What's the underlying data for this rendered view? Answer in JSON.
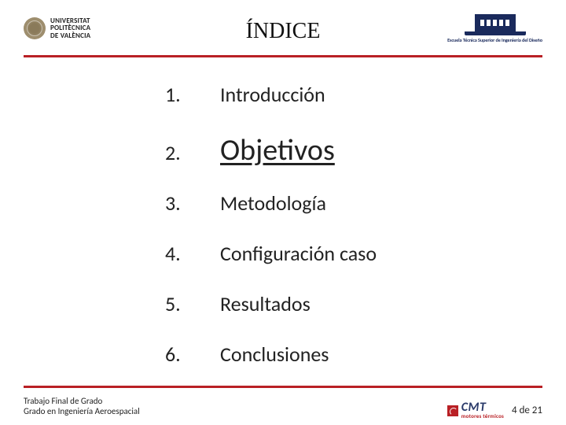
{
  "colors": {
    "accent_red": "#b92025",
    "upv_blue": "#1a2a5c",
    "text": "#222222",
    "background": "#ffffff"
  },
  "header": {
    "title": "ÍNDICE",
    "logo_left": {
      "line1": "UNIVERSITAT",
      "line2": "POLITÈCNICA",
      "line3": "DE VALÈNCIA"
    },
    "logo_right": {
      "label": "Escuela Técnica Superior de Ingeniería del Diseño"
    }
  },
  "index": {
    "items": [
      {
        "num": "1.",
        "label": "Introducción",
        "highlight": false
      },
      {
        "num": "2.",
        "label": "Objetivos",
        "highlight": true
      },
      {
        "num": "3.",
        "label": "Metodología",
        "highlight": false
      },
      {
        "num": "4.",
        "label": "Configuración caso",
        "highlight": false
      },
      {
        "num": "5.",
        "label": "Resultados",
        "highlight": false
      },
      {
        "num": "6.",
        "label": "Conclusiones",
        "highlight": false
      }
    ]
  },
  "footer": {
    "left_line1": "Trabajo Final de Grado",
    "left_line2": "Grado en Ingeniería Aeroespacial",
    "cmt_main": "CMT",
    "cmt_sub": "motores térmicos",
    "page": "4 de 21"
  }
}
